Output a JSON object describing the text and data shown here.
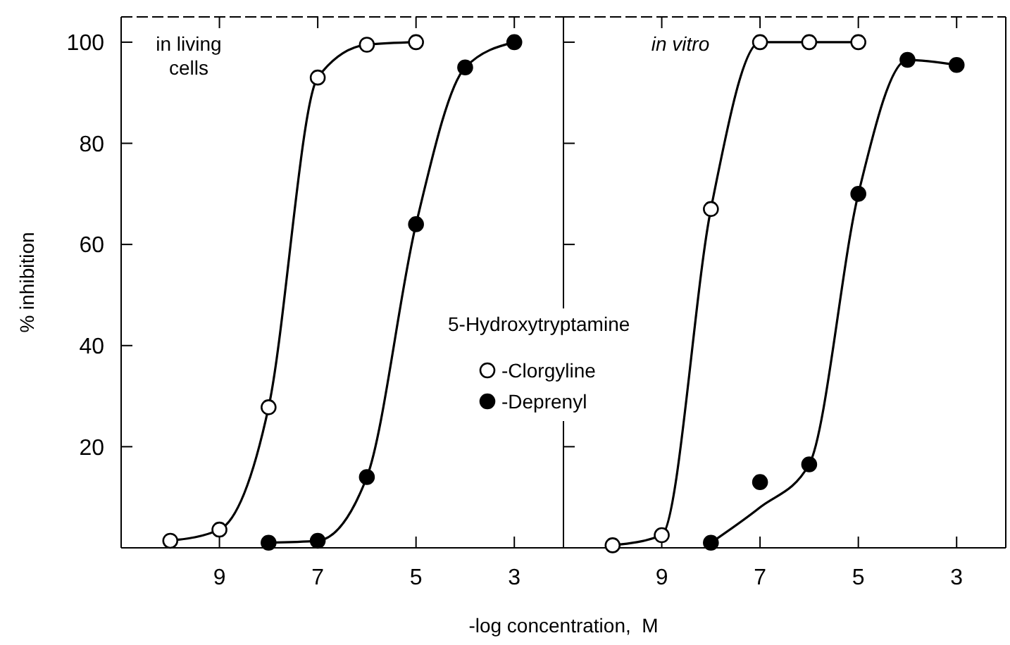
{
  "chart_data": [
    {
      "type": "line",
      "ylabel": "% inhibition",
      "xlabel": "-log concentration,  M",
      "xlim": [
        11,
        2
      ],
      "xticks": [
        9,
        7,
        5,
        3
      ],
      "ylim": [
        0,
        105
      ],
      "yticks": [
        20,
        40,
        60,
        80,
        100
      ],
      "annotations": [
        "in living cells"
      ],
      "legend": "right",
      "legend_title": "5-Hydroxytryptamine",
      "series": [
        {
          "color": "#000000",
          "x": [
            10,
            9,
            8,
            7,
            6,
            5
          ],
          "values": [
            1.4,
            3.6,
            27.8,
            93,
            99.5,
            100
          ]
        },
        {
          "color": "#000000",
          "x": [
            8,
            7,
            6,
            5,
            4,
            3
          ],
          "values": [
            1,
            1.4,
            14,
            64,
            95,
            100
          ]
        },
        {
          "type": "scatter",
          "name": "-Clorgyline",
          "color": "#ffffff",
          "marker": "circle",
          "x": [
            10,
            9,
            8,
            7,
            6,
            5
          ],
          "values": [
            1.4,
            3.6,
            27.8,
            93,
            99.5,
            100
          ]
        },
        {
          "type": "scatter",
          "name": "-Deprenyl",
          "color": "#000000",
          "marker": "circle",
          "x": [
            8,
            7,
            6,
            5,
            4,
            3
          ],
          "values": [
            1,
            1.4,
            14,
            64,
            95,
            100
          ]
        }
      ]
    },
    {
      "type": "line",
      "xlim": [
        11,
        2
      ],
      "xticks": [
        9,
        7,
        5,
        3
      ],
      "ylim": [
        0,
        105
      ],
      "yticks": [
        20,
        40,
        60,
        80,
        100
      ],
      "tick_labels": "x",
      "annotations": [
        "in vitro"
      ],
      "series": [
        {
          "color": "#000000",
          "x": [
            10,
            9,
            8,
            7,
            6,
            5
          ],
          "values": [
            0.5,
            2.5,
            67,
            100,
            100,
            100
          ]
        },
        {
          "color": "#000000",
          "x": [
            8,
            7,
            6,
            5,
            4,
            3
          ],
          "values": [
            1,
            8,
            16.5,
            70,
            96.5,
            95.5
          ]
        },
        {
          "type": "scatter",
          "color": "#ffffff",
          "marker": "circle",
          "x": [
            10,
            9,
            8,
            7,
            6,
            5
          ],
          "values": [
            0.5,
            2.5,
            67,
            100,
            100,
            100
          ]
        },
        {
          "type": "scatter",
          "color": "#000000",
          "marker": "circle",
          "x": [
            8,
            7,
            6,
            5,
            4,
            3
          ],
          "values": [
            1,
            13,
            16.5,
            70,
            96.5,
            95.5
          ]
        }
      ]
    }
  ]
}
